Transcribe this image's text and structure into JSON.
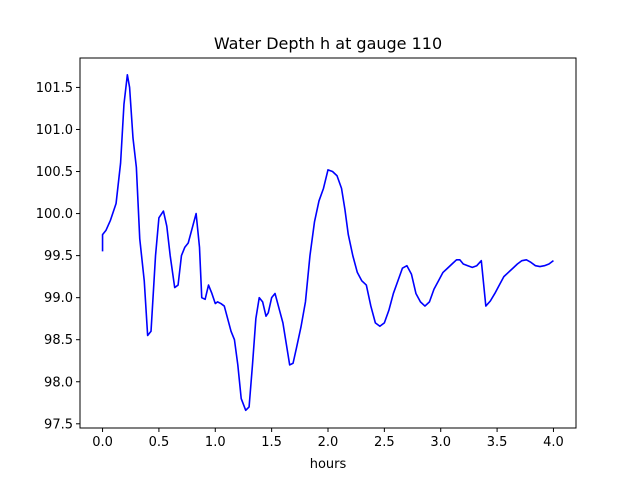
{
  "chart_data": {
    "type": "line",
    "title": "Water Depth h at gauge 110",
    "xlabel": "hours",
    "ylabel": "",
    "xlim": [
      -0.2,
      4.2
    ],
    "ylim": [
      97.45,
      101.85
    ],
    "xticks": [
      0.0,
      0.5,
      1.0,
      1.5,
      2.0,
      2.5,
      3.0,
      3.5,
      4.0
    ],
    "xtick_labels": [
      "0.0",
      "0.5",
      "1.0",
      "1.5",
      "2.0",
      "2.5",
      "3.0",
      "3.5",
      "4.0"
    ],
    "yticks": [
      97.5,
      98.0,
      98.5,
      99.0,
      99.5,
      100.0,
      100.5,
      101.0,
      101.5
    ],
    "ytick_labels": [
      "97.5",
      "98.0",
      "98.5",
      "99.0",
      "99.5",
      "100.0",
      "100.5",
      "101.0",
      "101.5"
    ],
    "grid": false,
    "series": [
      {
        "color": "#0000ff",
        "x": [
          0.0,
          0.0,
          0.03,
          0.07,
          0.12,
          0.16,
          0.19,
          0.22,
          0.24,
          0.27,
          0.3,
          0.33,
          0.37,
          0.4,
          0.43,
          0.47,
          0.5,
          0.54,
          0.57,
          0.6,
          0.64,
          0.67,
          0.7,
          0.73,
          0.76,
          0.8,
          0.83,
          0.86,
          0.88,
          0.91,
          0.94,
          0.97,
          1.0,
          1.02,
          1.05,
          1.08,
          1.11,
          1.14,
          1.17,
          1.2,
          1.23,
          1.27,
          1.3,
          1.33,
          1.36,
          1.39,
          1.42,
          1.45,
          1.47,
          1.5,
          1.53,
          1.57,
          1.6,
          1.63,
          1.66,
          1.69,
          1.72,
          1.76,
          1.8,
          1.84,
          1.88,
          1.92,
          1.96,
          2.0,
          2.04,
          2.08,
          2.12,
          2.15,
          2.18,
          2.22,
          2.26,
          2.3,
          2.34,
          2.38,
          2.42,
          2.46,
          2.5,
          2.54,
          2.58,
          2.62,
          2.66,
          2.7,
          2.74,
          2.78,
          2.82,
          2.86,
          2.9,
          2.94,
          2.98,
          3.02,
          3.06,
          3.1,
          3.14,
          3.17,
          3.2,
          3.24,
          3.28,
          3.32,
          3.36,
          3.4,
          3.44,
          3.48,
          3.52,
          3.56,
          3.6,
          3.64,
          3.68,
          3.72,
          3.76,
          3.8,
          3.84,
          3.88,
          3.92,
          3.96,
          4.0
        ],
        "y": [
          99.55,
          99.75,
          99.8,
          99.92,
          100.12,
          100.6,
          101.3,
          101.65,
          101.5,
          100.9,
          100.55,
          99.7,
          99.2,
          98.55,
          98.6,
          99.5,
          99.95,
          100.03,
          99.85,
          99.5,
          99.12,
          99.15,
          99.5,
          99.6,
          99.65,
          99.85,
          100.0,
          99.6,
          99.0,
          98.98,
          99.15,
          99.05,
          98.93,
          98.95,
          98.93,
          98.9,
          98.75,
          98.6,
          98.5,
          98.2,
          97.8,
          97.66,
          97.7,
          98.2,
          98.75,
          99.0,
          98.95,
          98.78,
          98.82,
          99.0,
          99.05,
          98.85,
          98.7,
          98.45,
          98.2,
          98.22,
          98.4,
          98.65,
          98.95,
          99.5,
          99.9,
          100.15,
          100.3,
          100.52,
          100.5,
          100.45,
          100.3,
          100.05,
          99.75,
          99.5,
          99.3,
          99.2,
          99.15,
          98.9,
          98.7,
          98.66,
          98.7,
          98.85,
          99.05,
          99.2,
          99.35,
          99.38,
          99.28,
          99.05,
          98.95,
          98.9,
          98.95,
          99.1,
          99.2,
          99.3,
          99.35,
          99.4,
          99.45,
          99.45,
          99.4,
          99.38,
          99.36,
          99.38,
          99.44,
          98.9,
          98.96,
          99.05,
          99.15,
          99.25,
          99.3,
          99.35,
          99.4,
          99.44,
          99.45,
          99.42,
          99.38,
          99.37,
          99.38,
          99.4,
          99.44
        ]
      }
    ]
  }
}
